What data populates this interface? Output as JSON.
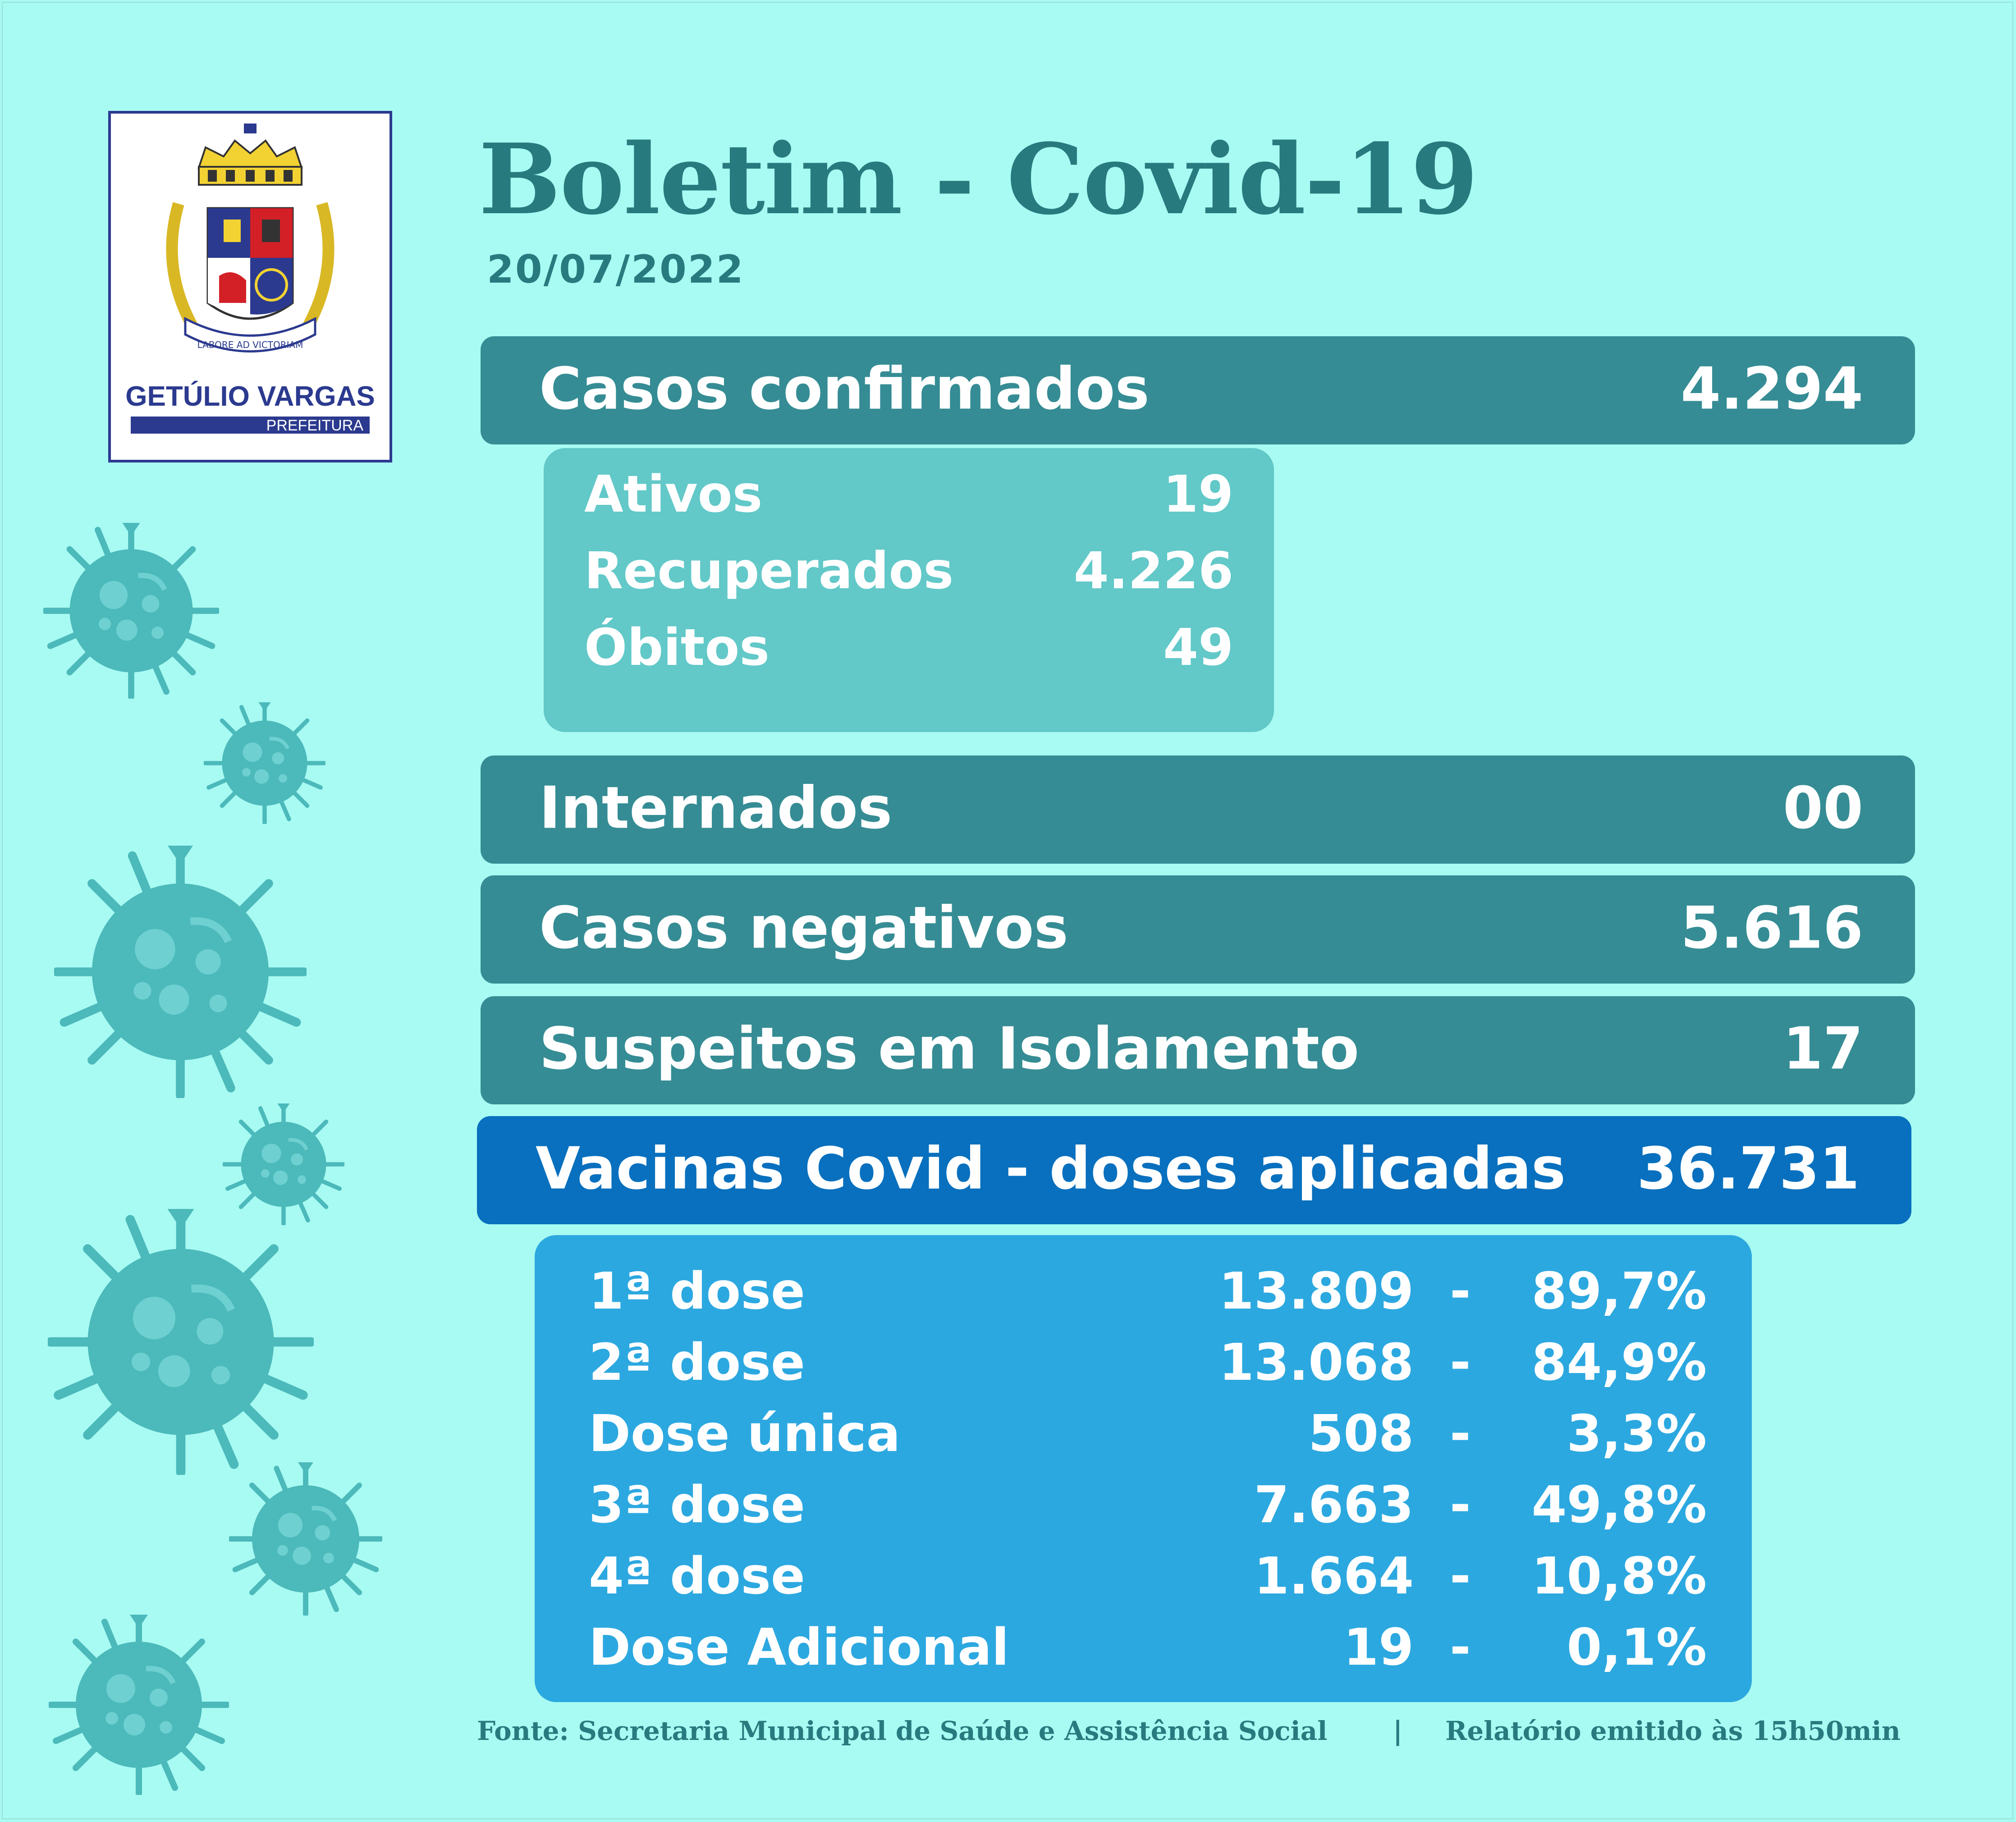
{
  "title": "Boletim - Covid-19",
  "date": "20/07/2022",
  "logo": {
    "city": "GETÚLIO VARGAS",
    "subtitle": "PREFEITURA",
    "motto": "LABORE AD VICTORIAM"
  },
  "confirmed": {
    "label": "Casos confirmados",
    "value": "4.294"
  },
  "breakdown": [
    {
      "label": "Ativos",
      "value": "19"
    },
    {
      "label": "Recuperados",
      "value": "4.226"
    },
    {
      "label": "Óbitos",
      "value": "49"
    }
  ],
  "hospitalized": {
    "label": "Internados",
    "value": "00"
  },
  "negative": {
    "label": "Casos negativos",
    "value": "5.616"
  },
  "suspects": {
    "label": "Suspeitos em Isolamento",
    "value": "17"
  },
  "vaccines": {
    "label": "Vacinas Covid - doses aplicadas",
    "value": "36.731"
  },
  "doses": [
    {
      "label": "1ª dose",
      "value": "13.809",
      "dash": "-",
      "percent": "89,7%"
    },
    {
      "label": "2ª dose",
      "value": "13.068",
      "dash": "-",
      "percent": "84,9%"
    },
    {
      "label": "Dose única",
      "value": "508",
      "dash": "-",
      "percent": "3,3%"
    },
    {
      "label": "3ª dose",
      "value": "7.663",
      "dash": "-",
      "percent": "49,8%"
    },
    {
      "label": "4ª dose",
      "value": "1.664",
      "dash": "-",
      "percent": "10,8%"
    },
    {
      "label": "Dose Adicional",
      "value": "19",
      "dash": "-",
      "percent": "0,1%"
    }
  ],
  "footer": {
    "source": "Fonte: Secretaria Municipal de Saúde e Assistência Social",
    "separator": "|",
    "report": "Relatório emitido às 15h50min"
  },
  "colors": {
    "background": "#a8fbf2",
    "bar": "#358c94",
    "vaccine_bar": "#0870be",
    "sub_cases": "#62c8c8",
    "sub_vaccines": "#2ca8e0",
    "title": "#277a7e",
    "virus": "#4cb9bb"
  },
  "icons": [
    "coat-of-arms-logo",
    "virus-icon"
  ]
}
